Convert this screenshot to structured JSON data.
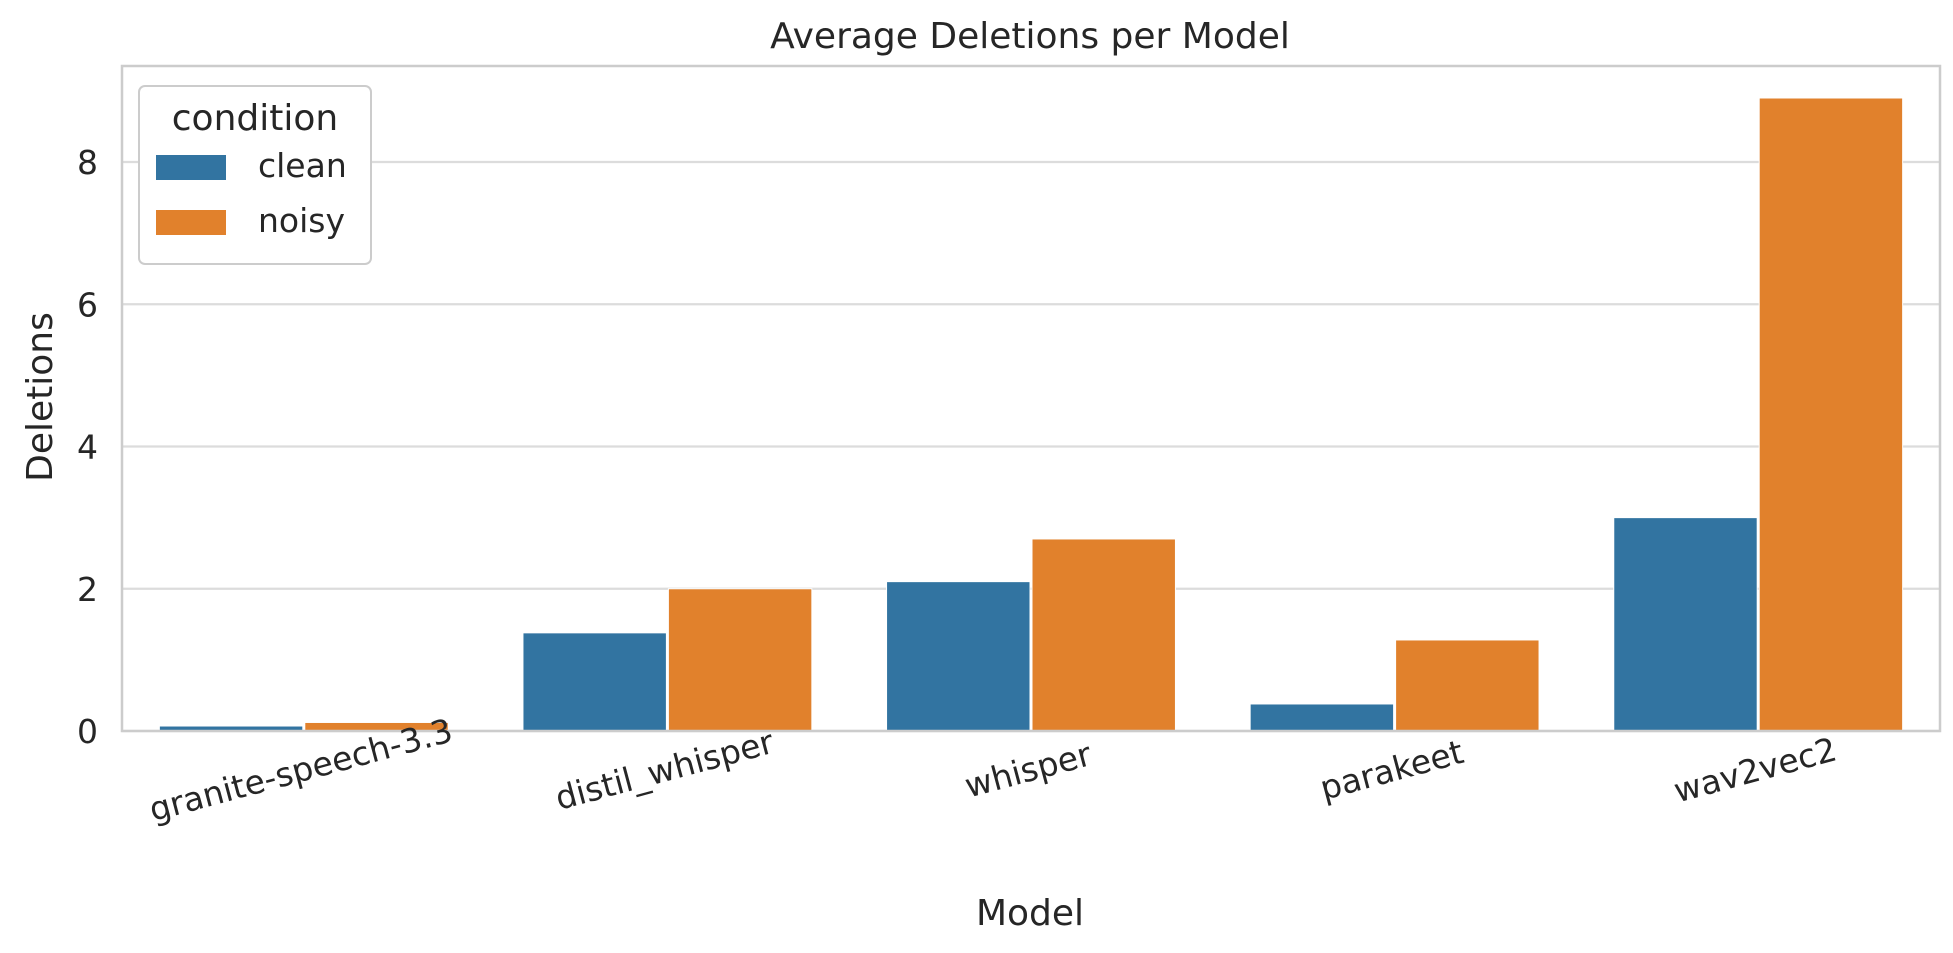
{
  "chart_data": {
    "type": "bar",
    "title": "Average Deletions per Model",
    "xlabel": "Model",
    "ylabel": "Deletions",
    "categories": [
      "granite-speech-3.3",
      "distil_whisper",
      "whisper",
      "parakeet",
      "wav2vec2"
    ],
    "series": [
      {
        "name": "clean",
        "color": "#3274a1",
        "values": [
          0.07,
          1.38,
          2.1,
          0.38,
          3.0
        ]
      },
      {
        "name": "noisy",
        "color": "#e1812c",
        "values": [
          0.12,
          2.0,
          2.7,
          1.28,
          8.9
        ]
      }
    ],
    "ylim": [
      0,
      9.35
    ],
    "yticks": [
      0,
      2,
      4,
      6,
      8
    ],
    "grid": true,
    "legend": {
      "title": "condition",
      "placement": "top-left"
    }
  }
}
